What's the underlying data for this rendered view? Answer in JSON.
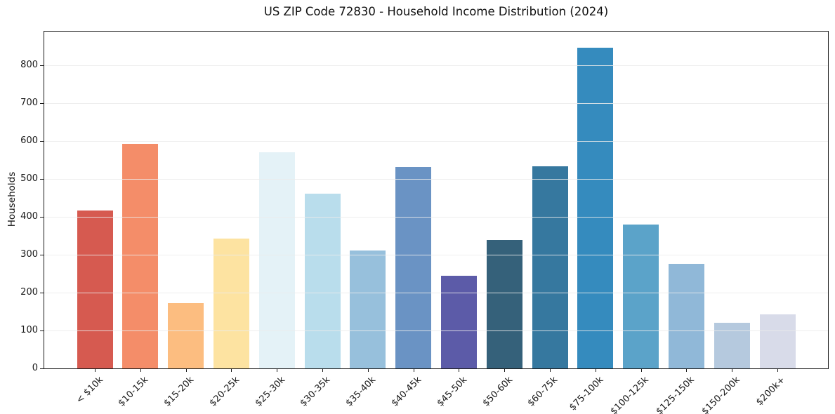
{
  "chart_data": {
    "type": "bar",
    "title": "US ZIP Code 72830 - Household Income Distribution (2024)",
    "xlabel": "",
    "ylabel": "Households",
    "ylim": [
      0,
      889
    ],
    "yticks": [
      0,
      100,
      200,
      300,
      400,
      500,
      600,
      700,
      800
    ],
    "grid": true,
    "legend": false,
    "categories": [
      "< $10k",
      "$10-15k",
      "$15-20k",
      "$20-25k",
      "$25-30k",
      "$30-35k",
      "$35-40k",
      "$40-45k",
      "$45-50k",
      "$50-60k",
      "$60-75k",
      "$75-100k",
      "$100-125k",
      "$125-150k",
      "$150-200k",
      "$200k+"
    ],
    "values": [
      417,
      592,
      172,
      343,
      570,
      461,
      311,
      531,
      245,
      339,
      534,
      847,
      380,
      276,
      120,
      142
    ],
    "bar_colors": [
      "#d65a50",
      "#f48d69",
      "#fcbd80",
      "#fde3a1",
      "#e4f2f7",
      "#b9ddec",
      "#97c0dc",
      "#6a93c4",
      "#5c5ba8",
      "#35617a",
      "#36789f",
      "#358bbe",
      "#5ba3c9",
      "#90b8d8",
      "#b5c9de",
      "#d8dbe9"
    ],
    "colors": {
      "spine": "#1a1a1a",
      "grid": "#ebebeb",
      "text": "#1a1a1a",
      "background": "#ffffff"
    }
  }
}
